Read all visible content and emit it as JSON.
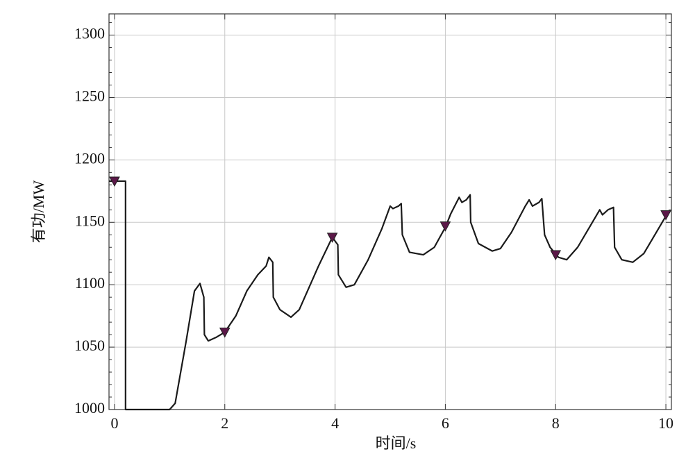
{
  "chart_data": {
    "type": "line",
    "xlabel": "时间/s",
    "ylabel": "有功/MW",
    "xlim": [
      -0.1,
      10.1
    ],
    "ylim": [
      1000,
      1317
    ],
    "xticks": [
      0,
      2,
      4,
      6,
      8,
      10
    ],
    "yticks": [
      1000,
      1050,
      1100,
      1150,
      1200,
      1250,
      1300
    ],
    "yminorticks": [
      1010,
      1020,
      1030,
      1040,
      1060,
      1070,
      1080,
      1090,
      1110,
      1120,
      1130,
      1140,
      1160,
      1170,
      1180,
      1190,
      1210,
      1220,
      1230,
      1240,
      1260,
      1270,
      1280,
      1290,
      1310
    ],
    "grid": true,
    "series": [
      {
        "color": "#1a1a1a",
        "marker": "none",
        "x": [
          -0.1,
          0.2,
          0.2,
          1.0,
          1.1,
          1.3,
          1.45,
          1.55,
          1.62,
          1.63,
          1.7,
          1.85,
          2.0,
          2.2,
          2.4,
          2.6,
          2.75,
          2.8,
          2.87,
          2.88,
          3.0,
          3.2,
          3.35,
          3.5,
          3.7,
          3.95,
          4.05,
          4.06,
          4.2,
          4.35,
          4.6,
          4.85,
          5.0,
          5.05,
          5.15,
          5.2,
          5.22,
          5.35,
          5.6,
          5.8,
          6.0,
          6.1,
          6.25,
          6.3,
          6.38,
          6.45,
          6.46,
          6.6,
          6.85,
          7.0,
          7.2,
          7.45,
          7.52,
          7.58,
          7.7,
          7.75,
          7.8,
          7.9,
          8.05,
          8.2,
          8.4,
          8.6,
          8.8,
          8.85,
          8.95,
          9.05,
          9.07,
          9.2,
          9.4,
          9.6,
          9.8,
          10.0
        ],
        "values": [
          1183,
          1183,
          1000,
          1000,
          1005,
          1055,
          1095,
          1101,
          1090,
          1060,
          1055,
          1058,
          1062,
          1075,
          1095,
          1108,
          1115,
          1122,
          1118,
          1090,
          1080,
          1074,
          1080,
          1095,
          1115,
          1138,
          1132,
          1108,
          1098,
          1100,
          1120,
          1145,
          1163,
          1161,
          1163,
          1165,
          1140,
          1126,
          1124,
          1130,
          1146,
          1157,
          1170,
          1166,
          1168,
          1172,
          1150,
          1133,
          1127,
          1129,
          1142,
          1163,
          1168,
          1163,
          1166,
          1169,
          1140,
          1130,
          1122,
          1120,
          1130,
          1145,
          1160,
          1156,
          1160,
          1162,
          1130,
          1120,
          1118,
          1125,
          1140,
          1155
        ]
      },
      {
        "color": "#5b1848",
        "marker": "triangle-down",
        "x": [
          0,
          2,
          3.95,
          6,
          8,
          10
        ],
        "values": [
          1183,
          1062,
          1138,
          1147,
          1124,
          1156
        ]
      }
    ]
  }
}
